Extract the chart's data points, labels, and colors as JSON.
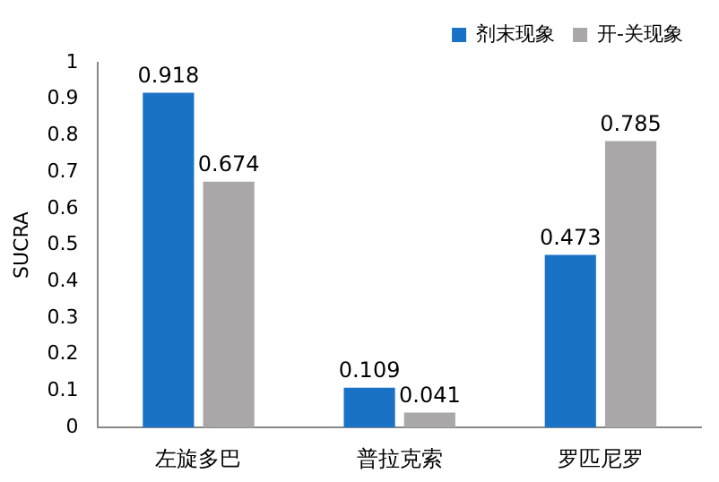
{
  "chart_data": {
    "type": "bar",
    "ylabel": "SUCRA",
    "categories": [
      "左旋多巴",
      "普拉克索",
      "罗匹尼罗"
    ],
    "series": [
      {
        "name": "剂末现象",
        "color": "#1a72c6",
        "values": [
          0.918,
          0.109,
          0.473
        ]
      },
      {
        "name": "开-关现象",
        "color": "#a9a7a8",
        "values": [
          0.674,
          0.041,
          0.785
        ]
      }
    ],
    "ylim": [
      0,
      1
    ],
    "yticks": [
      0,
      0.1,
      0.2,
      0.3,
      0.4,
      0.5,
      0.6,
      0.7,
      0.8,
      0.9,
      1
    ],
    "grid": false,
    "legend": "top right",
    "data_labels": true
  }
}
